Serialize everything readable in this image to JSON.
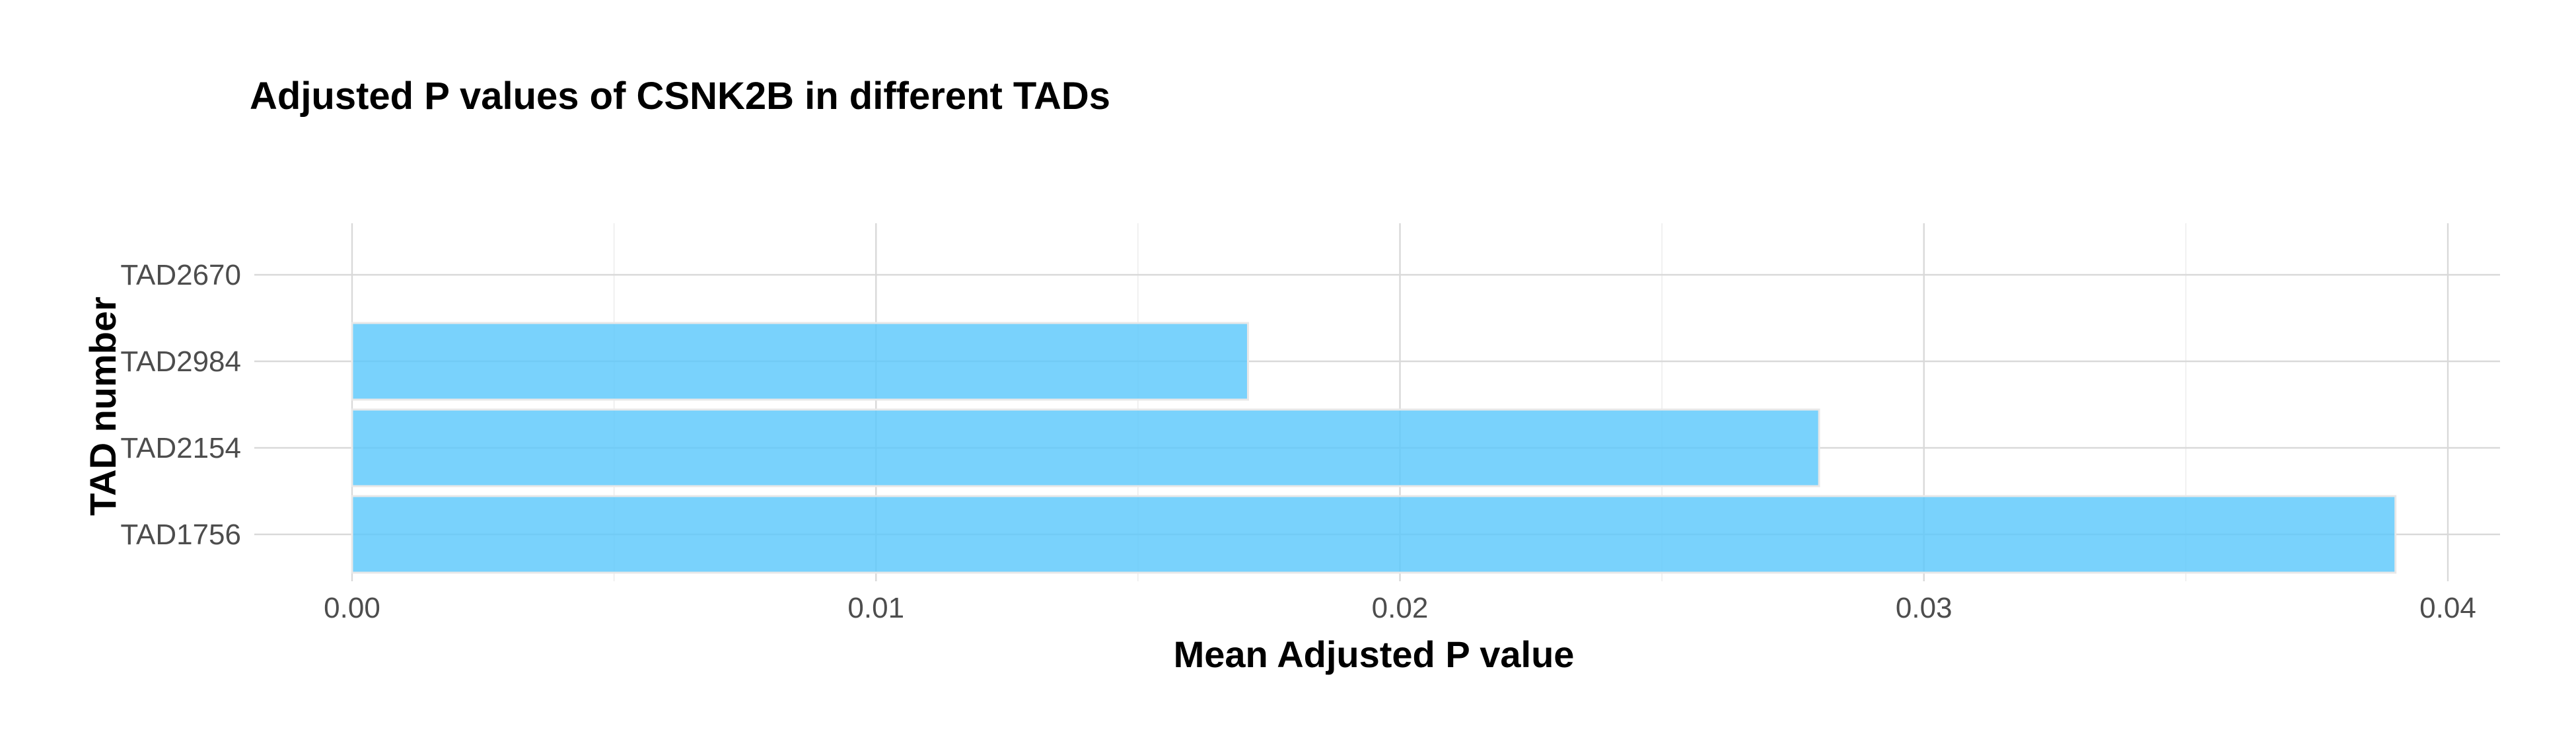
{
  "chart_data": {
    "type": "bar",
    "orientation": "horizontal",
    "title": "Adjusted P values of CSNK2B in different TADs",
    "xlabel": "Mean Adjusted P value",
    "ylabel": "TAD number",
    "categories": [
      "TAD1756",
      "TAD2154",
      "TAD2984",
      "TAD2670"
    ],
    "values": [
      0.039,
      0.028,
      0.0171,
      0
    ],
    "xlim": [
      0,
      0.04
    ],
    "xticks": [
      0.0,
      0.01,
      0.02,
      0.03,
      0.04
    ],
    "xtick_labels": [
      "0.00",
      "0.01",
      "0.02",
      "0.03",
      "0.04"
    ],
    "bar_color": "#5bc8fb",
    "grid": true,
    "legend": "none"
  }
}
